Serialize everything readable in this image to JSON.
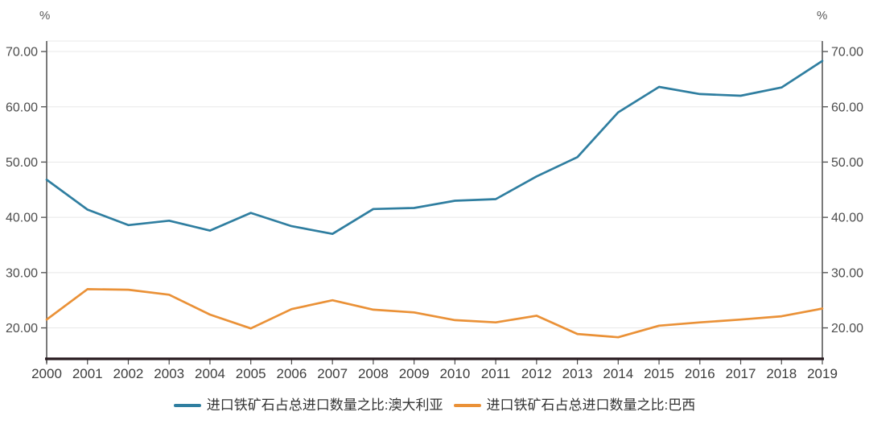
{
  "units": {
    "left": "%",
    "right": "%"
  },
  "colors": {
    "australia_line": "#2f7ea0",
    "brazil_line": "#ea9137",
    "gridline": "#e8e8e8",
    "vertical_axis": "#595959",
    "bottom_axis": "#281b20",
    "tick": "#4d4d4d",
    "ytick_label": "#4d4d4d",
    "xtick_label": "#3d3d3d",
    "legend_text": "#333333"
  },
  "chart_data": {
    "type": "line",
    "title": "",
    "xlabel": "",
    "ylabel_left": "%",
    "ylabel_right": "%",
    "grid": true,
    "legend_position": "bottom",
    "categories": [
      "2000",
      "2001",
      "2002",
      "2003",
      "2004",
      "2005",
      "2006",
      "2007",
      "2008",
      "2009",
      "2010",
      "2011",
      "2012",
      "2013",
      "2014",
      "2015",
      "2016",
      "2017",
      "2018",
      "2019"
    ],
    "yticks": [
      20,
      30,
      40,
      50,
      60,
      70
    ],
    "ytick_labels": [
      "20.00",
      "30.00",
      "40.00",
      "50.00",
      "60.00",
      "70.00"
    ],
    "ylim": [
      14.4,
      71.9
    ],
    "series": [
      {
        "name": "进口铁矿石占总进口数量之比:澳大利亚",
        "color": "#2f7ea0",
        "values": [
          46.8,
          41.4,
          38.6,
          39.4,
          37.6,
          40.8,
          38.4,
          37.0,
          41.5,
          41.7,
          43.0,
          43.3,
          47.4,
          50.9,
          59.0,
          63.6,
          62.3,
          62.0,
          63.5,
          68.3
        ]
      },
      {
        "name": "进口铁矿石占总进口数量之比:巴西",
        "color": "#ea9137",
        "values": [
          21.5,
          27.0,
          26.9,
          26.0,
          22.4,
          19.9,
          23.4,
          25.0,
          23.3,
          22.8,
          21.4,
          21.0,
          22.2,
          18.9,
          18.3,
          20.4,
          21.0,
          21.5,
          22.1,
          23.5
        ]
      }
    ]
  }
}
